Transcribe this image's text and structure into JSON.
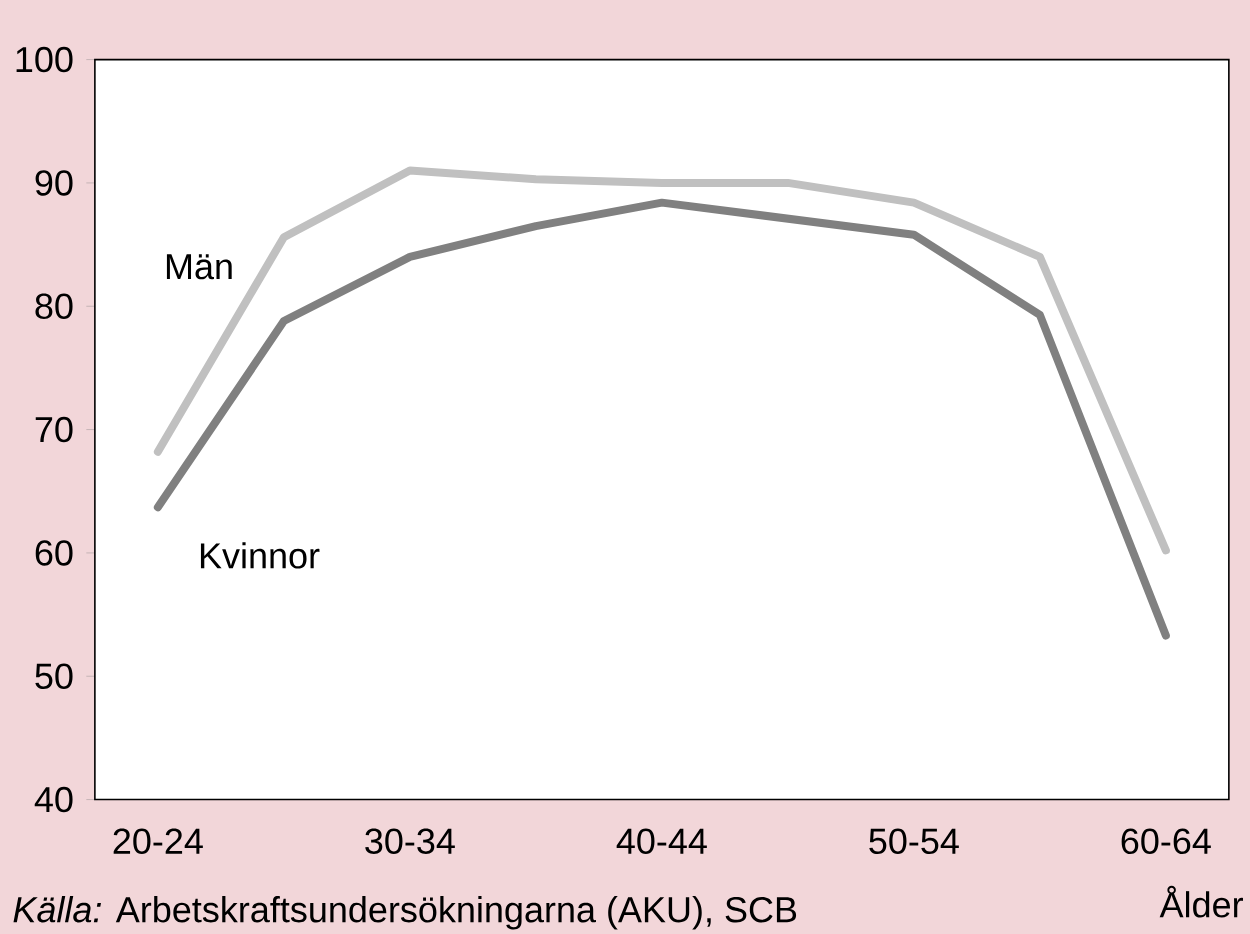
{
  "chart_data": {
    "type": "line",
    "xlabel": "Ålder",
    "categories": [
      "20-24",
      null,
      "30-34",
      null,
      "40-44",
      null,
      "50-54",
      null,
      "60-64"
    ],
    "series": [
      {
        "name": "Män",
        "color": "#c0c0c0",
        "values": [
          68.2,
          85.6,
          91,
          90.3,
          90,
          90,
          88.4,
          84,
          60.2
        ]
      },
      {
        "name": "Kvinnor",
        "color": "#808080",
        "values": [
          63.7,
          78.8,
          84,
          86.5,
          88.4,
          87.1,
          85.8,
          79.3,
          53.3
        ]
      }
    ],
    "ylim": [
      40,
      100
    ],
    "yticks": [
      40,
      50,
      60,
      70,
      80,
      90,
      100
    ],
    "grid": false,
    "legend": false,
    "marker": "none",
    "line_style": "solid",
    "annotations": [
      "*Källa:* Arbetskraftsundersökningarna (AKU), SCB"
    ]
  }
}
